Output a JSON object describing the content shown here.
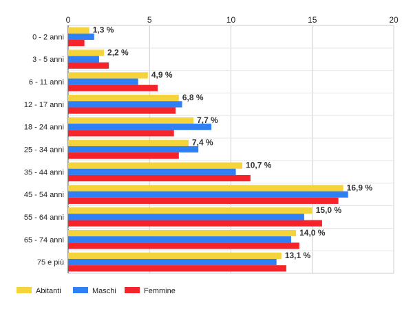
{
  "chart_data": {
    "type": "bar",
    "orientation": "horizontal",
    "categories": [
      "0 - 2 anni",
      "3 - 5 anni",
      "6 - 11 anni",
      "12 - 17 anni",
      "18 - 24 anni",
      "25 - 34 anni",
      "35 - 44 anni",
      "45 - 54 anni",
      "55 - 64 anni",
      "65 - 74 anni",
      "75 e più"
    ],
    "series": [
      {
        "name": "Abitanti",
        "color": "#f5d33b",
        "values": [
          1.3,
          2.2,
          4.9,
          6.8,
          7.7,
          7.4,
          10.7,
          16.9,
          15.0,
          14.0,
          13.1
        ]
      },
      {
        "name": "Maschi",
        "color": "#2f7ff5",
        "values": [
          1.6,
          1.9,
          4.3,
          7.0,
          8.8,
          8.0,
          10.3,
          17.2,
          14.5,
          13.7,
          12.8
        ]
      },
      {
        "name": "Femmine",
        "color": "#f5232a",
        "values": [
          1.0,
          2.5,
          5.5,
          6.6,
          6.5,
          6.8,
          11.2,
          16.6,
          15.6,
          14.2,
          13.4
        ]
      }
    ],
    "data_labels": [
      "1,3 %",
      "2,2 %",
      "4,9 %",
      "6,8 %",
      "7,7 %",
      "7,4 %",
      "10,7 %",
      "16,9 %",
      "15,0 %",
      "14,0 %",
      "13,1 %"
    ],
    "x_ticks": [
      "0",
      "5",
      "10",
      "15",
      "20"
    ],
    "xlim": [
      0,
      20
    ],
    "grid": true,
    "axis_position": "top",
    "legend_position": "bottom-left"
  }
}
